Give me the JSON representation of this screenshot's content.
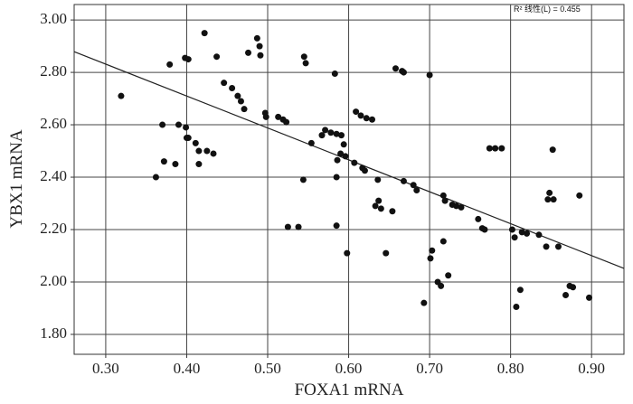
{
  "chart_data": {
    "type": "scatter",
    "x_label": "FOXA1 mRNA",
    "y_label": "YBX1 mRNA",
    "annotation": "R² 线性(L) = 0.455",
    "xlim": [
      0.261,
      0.94
    ],
    "ylim": [
      1.724,
      3.059
    ],
    "xticks": [
      {
        "value": 0.3,
        "label": "0.30"
      },
      {
        "value": 0.4,
        "label": "0.40"
      },
      {
        "value": 0.5,
        "label": "0.50"
      },
      {
        "value": 0.6,
        "label": "0.60"
      },
      {
        "value": 0.7,
        "label": "0.70"
      },
      {
        "value": 0.8,
        "label": "0.80"
      },
      {
        "value": 0.9,
        "label": "0.90"
      }
    ],
    "yticks": [
      {
        "value": 1.8,
        "label": "1.80"
      },
      {
        "value": 2.0,
        "label": "2.00"
      },
      {
        "value": 2.2,
        "label": "2.20"
      },
      {
        "value": 2.4,
        "label": "2.40"
      },
      {
        "value": 2.6,
        "label": "2.60"
      },
      {
        "value": 2.8,
        "label": "2.80"
      },
      {
        "value": 3.0,
        "label": "3.00"
      }
    ],
    "grid": true,
    "color": "#111111",
    "line_color": "#222222",
    "fit_line": {
      "x": [
        0.261,
        0.94
      ],
      "y": [
        2.879,
        2.052
      ]
    },
    "x": [
      0.319,
      0.379,
      0.398,
      0.402,
      0.422,
      0.437,
      0.39,
      0.37,
      0.399,
      0.4,
      0.402,
      0.411,
      0.372,
      0.386,
      0.362,
      0.415,
      0.425,
      0.433,
      0.415,
      0.446,
      0.456,
      0.463,
      0.467,
      0.471,
      0.476,
      0.487,
      0.49,
      0.491,
      0.497,
      0.498,
      0.513,
      0.519,
      0.523,
      0.545,
      0.547,
      0.544,
      0.525,
      0.538,
      0.554,
      0.567,
      0.571,
      0.578,
      0.585,
      0.583,
      0.594,
      0.59,
      0.586,
      0.585,
      0.591,
      0.596,
      0.607,
      0.617,
      0.62,
      0.585,
      0.598,
      0.609,
      0.615,
      0.622,
      0.629,
      0.636,
      0.633,
      0.637,
      0.64,
      0.654,
      0.646,
      0.658,
      0.666,
      0.668,
      0.7,
      0.668,
      0.68,
      0.684,
      0.693,
      0.703,
      0.701,
      0.71,
      0.714,
      0.717,
      0.717,
      0.719,
      0.723,
      0.728,
      0.733,
      0.739,
      0.76,
      0.765,
      0.768,
      0.774,
      0.781,
      0.789,
      0.802,
      0.805,
      0.807,
      0.812,
      0.814,
      0.82,
      0.835,
      0.844,
      0.848,
      0.846,
      0.853,
      0.852,
      0.859,
      0.868,
      0.873,
      0.877,
      0.885,
      0.897
    ],
    "values": [
      2.71,
      2.83,
      2.855,
      2.85,
      2.95,
      2.86,
      2.6,
      2.6,
      2.59,
      2.55,
      2.55,
      2.53,
      2.46,
      2.45,
      2.4,
      2.5,
      2.5,
      2.49,
      2.45,
      2.76,
      2.74,
      2.71,
      2.69,
      2.66,
      2.875,
      2.93,
      2.9,
      2.865,
      2.645,
      2.63,
      2.63,
      2.62,
      2.61,
      2.86,
      2.835,
      2.39,
      2.21,
      2.21,
      2.53,
      2.56,
      2.58,
      2.57,
      2.565,
      2.795,
      2.525,
      2.49,
      2.465,
      2.4,
      2.56,
      2.48,
      2.455,
      2.435,
      2.425,
      2.215,
      2.11,
      2.65,
      2.635,
      2.625,
      2.62,
      2.39,
      2.29,
      2.31,
      2.28,
      2.27,
      2.11,
      2.815,
      2.805,
      2.8,
      2.79,
      2.385,
      2.37,
      2.35,
      1.92,
      2.12,
      2.09,
      2.0,
      1.985,
      2.155,
      2.33,
      2.31,
      2.025,
      2.295,
      2.29,
      2.285,
      2.24,
      2.205,
      2.2,
      2.51,
      2.51,
      2.51,
      2.2,
      2.17,
      1.905,
      1.97,
      2.19,
      2.185,
      2.18,
      2.135,
      2.34,
      2.315,
      2.315,
      2.505,
      2.135,
      1.95,
      1.985,
      1.98,
      2.33,
      1.94
    ]
  }
}
